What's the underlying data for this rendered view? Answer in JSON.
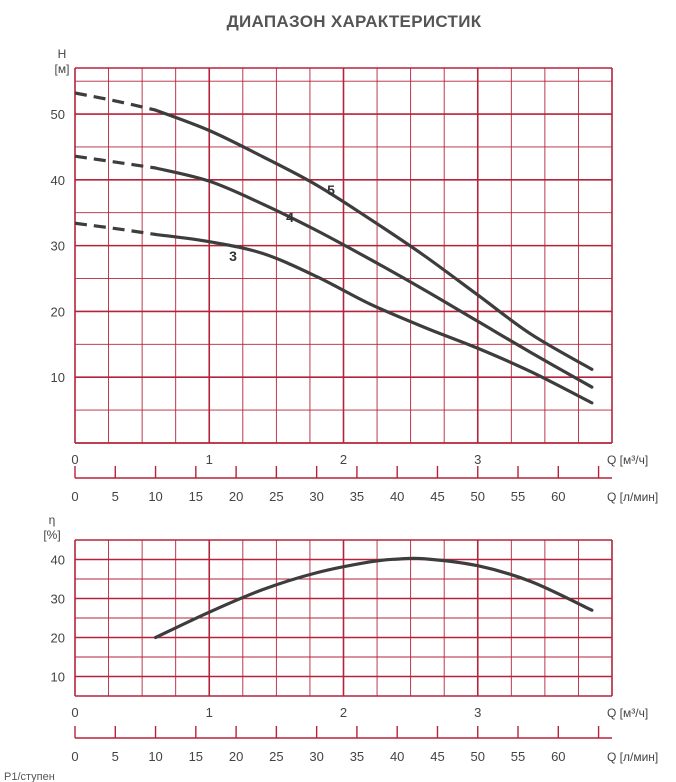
{
  "title": "ДИАПАЗОН ХАРАКТЕРИСТИК",
  "footer_text": "P1/ступен",
  "colors": {
    "grid": "#b5233a",
    "curve": "#3d3d3d",
    "text": "#444444"
  },
  "chart_data": [
    {
      "type": "line",
      "title": "ДИАПАЗОН ХАРАКТЕРИСТИК",
      "ylabel_lines": [
        "H",
        "[м]"
      ],
      "xlabel": "Q [м³/ч]",
      "x2label": "Q [л/мин]",
      "xlim": [
        0,
        4
      ],
      "ylim": [
        0,
        57
      ],
      "x_ticks": [
        0,
        1,
        2,
        3
      ],
      "y_ticks": [
        10,
        20,
        30,
        40,
        50
      ],
      "x2_ticks": [
        0,
        5,
        10,
        15,
        20,
        25,
        30,
        35,
        40,
        45,
        50,
        55,
        60
      ],
      "grid": true,
      "series": [
        {
          "name": "5",
          "dashed_until": 0.6,
          "x": [
            0,
            0.3,
            0.6,
            1.0,
            1.4,
            1.8,
            2.2,
            2.6,
            3.0,
            3.4,
            3.85
          ],
          "y": [
            53.2,
            52.0,
            50.6,
            47.5,
            43.5,
            39.2,
            34.0,
            28.5,
            22.5,
            16.5,
            11.2
          ]
        },
        {
          "name": "4",
          "dashed_until": 0.6,
          "x": [
            0,
            0.3,
            0.6,
            1.0,
            1.4,
            1.8,
            2.2,
            2.6,
            3.0,
            3.4,
            3.85
          ],
          "y": [
            43.6,
            42.7,
            41.8,
            39.8,
            36.3,
            32.3,
            27.9,
            23.3,
            18.5,
            13.7,
            8.5
          ]
        },
        {
          "name": "3",
          "dashed_until": 0.6,
          "x": [
            0,
            0.3,
            0.6,
            1.0,
            1.4,
            1.8,
            2.2,
            2.6,
            3.0,
            3.4,
            3.85
          ],
          "y": [
            33.4,
            32.6,
            31.7,
            30.6,
            28.8,
            25.3,
            21.1,
            17.6,
            14.4,
            10.8,
            6.1
          ]
        }
      ]
    },
    {
      "type": "line",
      "ylabel_lines": [
        "η",
        "[%]"
      ],
      "xlabel": "Q [м³/ч]",
      "x2label": "Q [л/мин]",
      "xlim": [
        0,
        4
      ],
      "ylim": [
        5,
        45
      ],
      "x_ticks": [
        0,
        1,
        2,
        3
      ],
      "y_ticks": [
        10,
        20,
        30,
        40
      ],
      "x2_ticks": [
        0,
        5,
        10,
        15,
        20,
        25,
        30,
        35,
        40,
        45,
        50,
        55,
        60
      ],
      "grid": true,
      "series": [
        {
          "x": [
            0.6,
            1.0,
            1.4,
            1.8,
            2.2,
            2.4,
            2.6,
            3.0,
            3.4,
            3.85
          ],
          "y": [
            20,
            26.5,
            32.3,
            36.6,
            39.4,
            40.1,
            40.2,
            38.4,
            34.3,
            27
          ]
        }
      ]
    }
  ]
}
